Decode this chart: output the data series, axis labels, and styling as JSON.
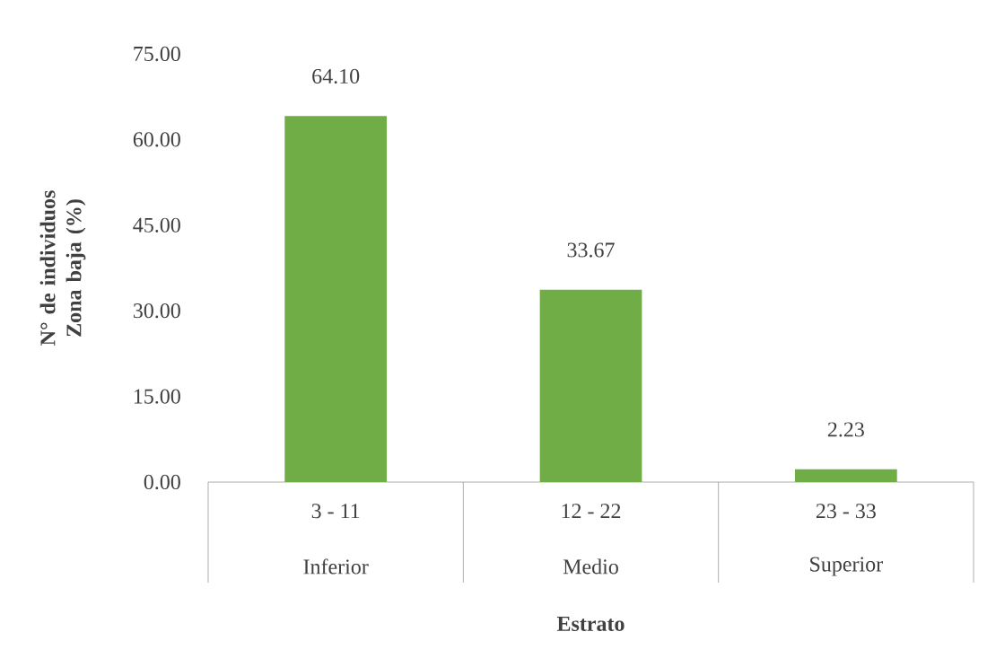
{
  "chart_data": {
    "type": "bar",
    "xlabel": "Estrato",
    "ylabel": "N° de individuos Zona baja (%)",
    "categories": [
      "3 - 11",
      "12 - 22",
      "23 - 33"
    ],
    "annotations": [
      "Inferior",
      "Medio",
      "Superior"
    ],
    "values": [
      64.1,
      33.67,
      2.23
    ],
    "value_labels": [
      "64.10",
      "33.67",
      "2.23"
    ],
    "color": "#70ad47",
    "ylim": [
      0,
      75
    ],
    "yticks": [
      {
        "value": 0,
        "label": "0.00"
      },
      {
        "value": 15,
        "label": "15.00"
      },
      {
        "value": 30,
        "label": "30.00"
      },
      {
        "value": 45,
        "label": "45.00"
      },
      {
        "value": 60,
        "label": "60.00"
      },
      {
        "value": 75,
        "label": "75.00"
      }
    ]
  }
}
